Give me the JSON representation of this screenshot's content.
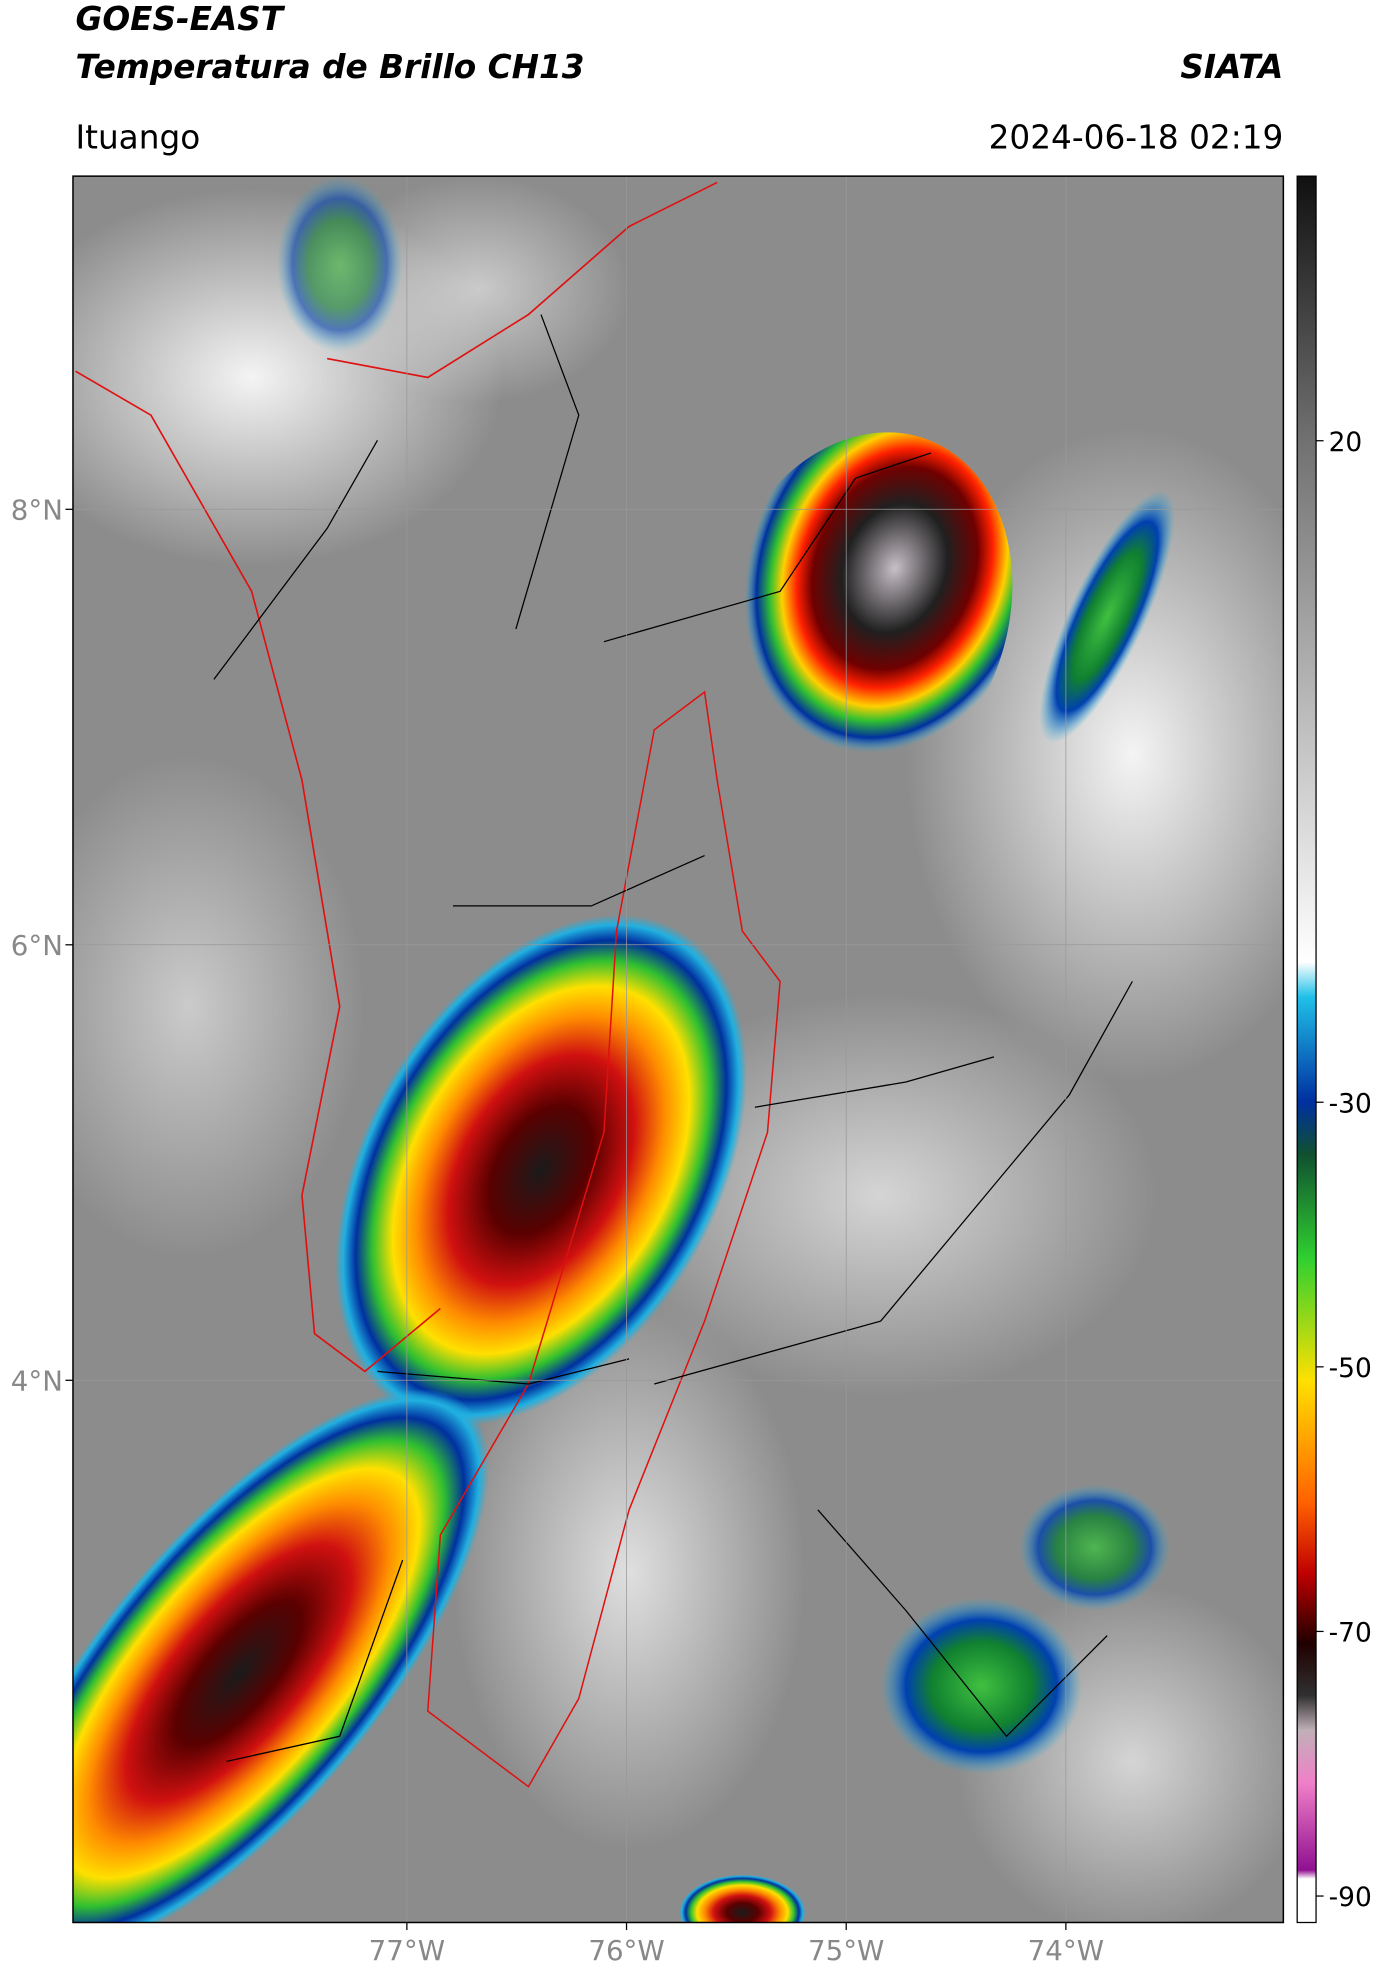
{
  "header": {
    "line1": "GOES-EAST",
    "line2": "Temperatura de Brillo CH13",
    "agency": "SIATA",
    "location": "Ituango",
    "datetime": "2024-06-18 02:19"
  },
  "map": {
    "xlim": [
      -78.52,
      -73.01
    ],
    "ylim": [
      1.51,
      9.53
    ],
    "xticks": [
      {
        "value": -77,
        "label": "77°W"
      },
      {
        "value": -76,
        "label": "76°W"
      },
      {
        "value": -75,
        "label": "75°W"
      },
      {
        "value": -74,
        "label": "74°W"
      }
    ],
    "yticks": [
      {
        "value": 8,
        "label": "8°N"
      },
      {
        "value": 6,
        "label": "6°N"
      },
      {
        "value": 4,
        "label": "4°N"
      }
    ]
  },
  "colorbar": {
    "range": [
      -92,
      40
    ],
    "ticks": [
      20,
      -30,
      -50,
      -70,
      -90
    ]
  }
}
